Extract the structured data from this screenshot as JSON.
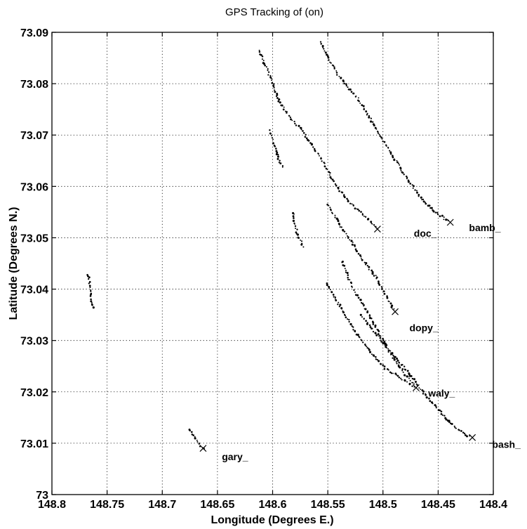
{
  "chart_data": {
    "type": "scatter",
    "title": "GPS Tracking of (on)",
    "xlabel": "Longitude (Degrees E.)",
    "ylabel": "Latitude (Degrees N.)",
    "xlim": [
      148.8,
      148.4
    ],
    "ylim": [
      73.0,
      73.09
    ],
    "x_reversed": true,
    "grid": true,
    "xticks": [
      "148.8",
      "148.75",
      "148.7",
      "148.65",
      "148.6",
      "148.55",
      "148.5",
      "148.45",
      "148.4"
    ],
    "yticks": [
      "73",
      "73.01",
      "73.02",
      "73.03",
      "73.04",
      "73.05",
      "73.06",
      "73.07",
      "73.08",
      "73.09"
    ],
    "labels": [
      {
        "text": "doc_",
        "x": 148.472,
        "y": 73.0502
      },
      {
        "text": "bamb_",
        "x": 148.422,
        "y": 73.0513
      },
      {
        "text": "dopy_",
        "x": 148.476,
        "y": 73.0318
      },
      {
        "text": "waly_",
        "x": 148.459,
        "y": 73.0191
      },
      {
        "text": "bash_",
        "x": 148.401,
        "y": 73.0091
      },
      {
        "text": "gary_",
        "x": 148.646,
        "y": 73.0067
      }
    ],
    "tracks": [
      {
        "points": [
          [
            148.612,
            73.0865
          ],
          [
            148.602,
            73.0812
          ],
          [
            148.594,
            73.0765
          ],
          [
            148.583,
            73.073
          ],
          [
            148.574,
            73.0712
          ],
          [
            148.569,
            73.0695
          ],
          [
            148.555,
            73.065
          ],
          [
            148.543,
            73.0603
          ],
          [
            148.53,
            73.0568
          ],
          [
            148.515,
            73.054
          ],
          [
            148.505,
            73.0517
          ]
        ],
        "end": [
          148.505,
          73.0517
        ]
      },
      {
        "points": [
          [
            148.556,
            73.088
          ],
          [
            148.548,
            73.0843
          ],
          [
            148.54,
            73.0815
          ],
          [
            148.528,
            73.0785
          ],
          [
            148.52,
            73.0762
          ],
          [
            148.508,
            73.0718
          ],
          [
            148.49,
            73.0655
          ],
          [
            148.475,
            73.0605
          ],
          [
            148.463,
            73.057
          ],
          [
            148.451,
            73.0548
          ],
          [
            148.44,
            73.053
          ]
        ],
        "end": [
          148.439,
          73.053
        ]
      },
      {
        "points": [
          [
            148.55,
            73.0565
          ],
          [
            148.54,
            73.0528
          ],
          [
            148.527,
            73.0488
          ],
          [
            148.518,
            73.0455
          ],
          [
            148.507,
            73.0425
          ],
          [
            148.497,
            73.0388
          ],
          [
            148.49,
            73.0358
          ]
        ],
        "end": [
          148.489,
          73.0356
        ]
      },
      {
        "points": [
          [
            148.537,
            73.0455
          ],
          [
            148.531,
            73.042
          ],
          [
            148.524,
            73.039
          ],
          [
            148.515,
            73.036
          ],
          [
            148.505,
            73.032
          ],
          [
            148.496,
            73.0285
          ],
          [
            148.487,
            73.0255
          ],
          [
            148.478,
            73.0228
          ],
          [
            148.47,
            73.0208
          ]
        ],
        "end": [
          148.47,
          73.0208
        ]
      },
      {
        "points": [
          [
            148.551,
            73.041
          ],
          [
            148.541,
            73.0375
          ],
          [
            148.533,
            73.0345
          ],
          [
            148.523,
            73.031
          ],
          [
            148.51,
            73.0275
          ],
          [
            148.498,
            73.0245
          ],
          [
            148.485,
            73.0228
          ],
          [
            148.472,
            73.021
          ]
        ]
      },
      {
        "points": [
          [
            148.52,
            73.035
          ],
          [
            148.505,
            73.031
          ],
          [
            148.49,
            73.027
          ],
          [
            148.475,
            73.0232
          ],
          [
            148.462,
            73.0195
          ],
          [
            148.45,
            73.0165
          ],
          [
            148.438,
            73.0138
          ],
          [
            148.428,
            73.012
          ],
          [
            148.42,
            73.0112
          ]
        ],
        "end": [
          148.419,
          73.0111
        ]
      },
      {
        "points": [
          [
            148.602,
            73.0708
          ],
          [
            148.6,
            73.069
          ],
          [
            148.597,
            73.067
          ],
          [
            148.594,
            73.065
          ],
          [
            148.59,
            73.0633
          ]
        ]
      },
      {
        "points": [
          [
            148.581,
            73.0548
          ],
          [
            148.58,
            73.053
          ],
          [
            148.578,
            73.0512
          ],
          [
            148.575,
            73.0495
          ],
          [
            148.572,
            73.0478
          ]
        ]
      },
      {
        "points": [
          [
            148.767,
            73.0428
          ],
          [
            148.766,
            73.0408
          ],
          [
            148.765,
            73.0392
          ],
          [
            148.764,
            73.0378
          ],
          [
            148.762,
            73.0362
          ]
        ]
      },
      {
        "points": [
          [
            148.676,
            73.0127
          ],
          [
            148.672,
            73.0115
          ],
          [
            148.668,
            73.0103
          ],
          [
            148.662,
            73.0088
          ]
        ],
        "end": [
          148.663,
          73.009
        ]
      }
    ]
  }
}
